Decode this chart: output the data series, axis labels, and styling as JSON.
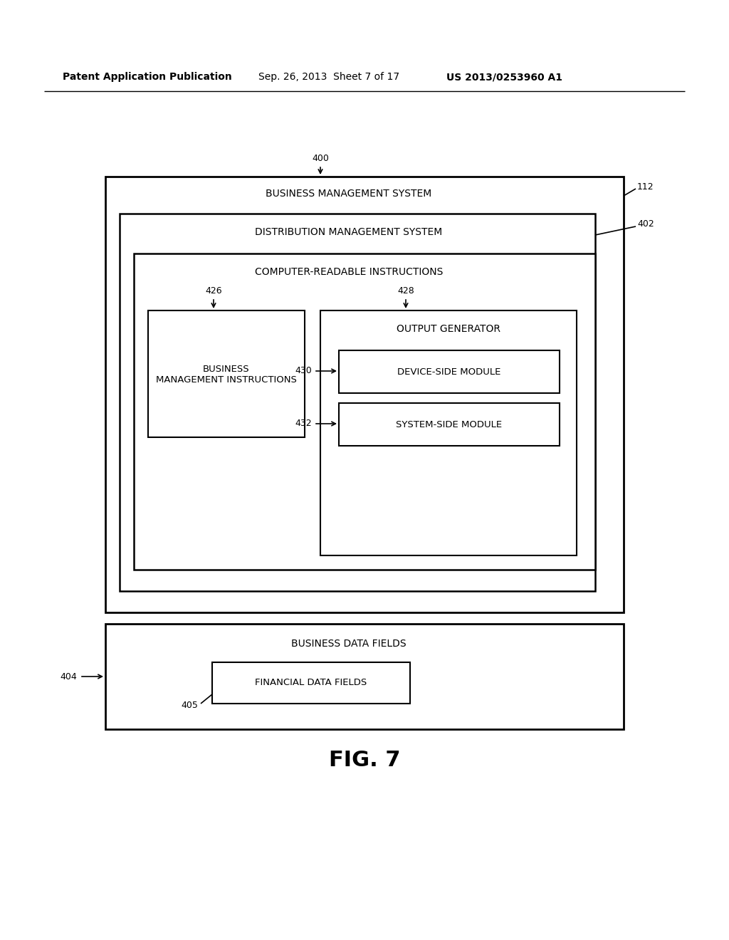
{
  "bg_color": "#ffffff",
  "header_left": "Patent Application Publication",
  "header_mid": "Sep. 26, 2013  Sheet 7 of 17",
  "header_right": "US 2013/0253960 A1",
  "fig_label": "FIG. 7",
  "label_400": "400",
  "label_112": "112",
  "label_402": "402",
  "label_426": "426",
  "label_428": "428",
  "label_430": "430",
  "label_432": "432",
  "label_404": "404",
  "label_405": "405",
  "text_bms": "BUSINESS MANAGEMENT SYSTEM",
  "text_dms": "DISTRIBUTION MANAGEMENT SYSTEM",
  "text_cri": "COMPUTER-READABLE INSTRUCTIONS",
  "text_bmi": "BUSINESS\nMANAGEMENT INSTRUCTIONS",
  "text_og": "OUTPUT GENERATOR",
  "text_dsm": "DEVICE-SIDE MODULE",
  "text_ssm": "SYSTEM-SIDE MODULE",
  "text_bdf": "BUSINESS DATA FIELDS",
  "text_fdf": "FINANCIAL DATA FIELDS"
}
